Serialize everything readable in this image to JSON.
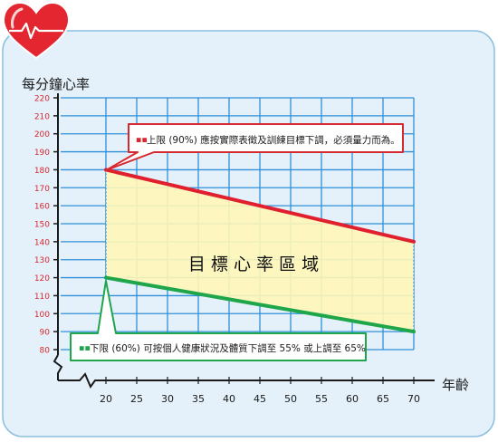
{
  "chart_data": {
    "type": "line",
    "ylabel": "每分鐘心率",
    "xlabel": "年齡",
    "zone_label": "目 標 心 率 區 域",
    "x": [
      20,
      25,
      30,
      35,
      40,
      45,
      50,
      55,
      60,
      65,
      70
    ],
    "xlim": [
      20,
      70
    ],
    "ylim": [
      80,
      220
    ],
    "y_ticks": [
      80,
      90,
      100,
      110,
      120,
      130,
      140,
      150,
      160,
      170,
      180,
      190,
      200,
      210,
      220
    ],
    "grid": true,
    "series": [
      {
        "key": "upper",
        "values": [
          180,
          176,
          172,
          168,
          164,
          160,
          156,
          152,
          148,
          144,
          140
        ],
        "color": "#e0202e"
      },
      {
        "key": "lower",
        "values": [
          120,
          117,
          114,
          111,
          108,
          105,
          102,
          99,
          96,
          93,
          90
        ],
        "color": "#1fa54a"
      }
    ],
    "annotations": {
      "upper": "上限 (90%) 應按實際表徵及訓練目標下調，必須量力而為。",
      "lower": "下限 (60%) 可按個人健康狀況及體質下調至 55% 或上調至 65%"
    },
    "colors": {
      "grid": "#2f8fd8",
      "zone": "#fff7b8",
      "axis": "#1a1a1a",
      "panel": "#e4f1fa",
      "panel_border": "#8bbfe0",
      "tick_label_y": "#d7282f",
      "tick_label_x": "#1a1a1a",
      "heart": "#e3262f"
    }
  }
}
